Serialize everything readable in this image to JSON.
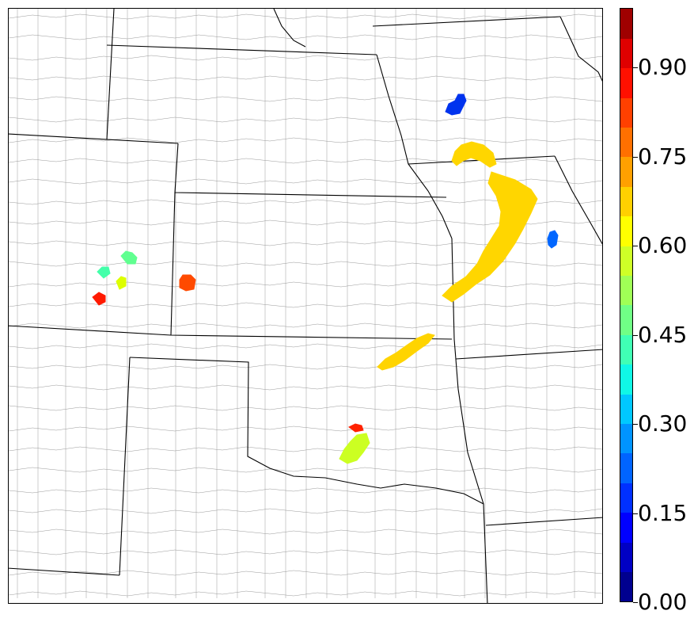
{
  "map": {
    "description_icon": "probability-field-map",
    "colormap": "jet"
  },
  "colorbar": {
    "min": 0.0,
    "max": 1.0,
    "step": 0.05,
    "tick_labels": [
      "0.00",
      "0.15",
      "0.30",
      "0.45",
      "0.60",
      "0.75",
      "0.90"
    ],
    "tick_values": [
      0.0,
      0.15,
      0.3,
      0.45,
      0.6,
      0.75,
      0.9
    ],
    "colors": [
      "#00008f",
      "#0000c4",
      "#0000ff",
      "#0030ff",
      "#0064ff",
      "#0094ff",
      "#00c8ff",
      "#10f8e6",
      "#40ffb5",
      "#70ff86",
      "#a0ff56",
      "#cfff27",
      "#ffff00",
      "#ffd000",
      "#ffa000",
      "#ff7000",
      "#ff4000",
      "#ff1000",
      "#df0000",
      "#9f0000"
    ]
  },
  "features": [
    {
      "name": "iowa-north-blob",
      "value": 0.12,
      "color": "#0033ee"
    },
    {
      "name": "iowa-line-north",
      "value": 0.68,
      "color": "#ffd600"
    },
    {
      "name": "missouri-kansas-line",
      "value": 0.68,
      "color": "#ffd600"
    },
    {
      "name": "missouri-east-blob",
      "value": 0.17,
      "color": "#0066ff"
    },
    {
      "name": "kansas-oklahoma-line",
      "value": 0.66,
      "color": "#ffd400"
    },
    {
      "name": "oklahoma-red-cell",
      "value": 0.93,
      "color": "#ff2200"
    },
    {
      "name": "oklahoma-green-cell",
      "value": 0.62,
      "color": "#ccff22"
    },
    {
      "name": "colorado-cell-1",
      "value": 0.47,
      "color": "#44ffaa"
    },
    {
      "name": "colorado-cell-2",
      "value": 0.5,
      "color": "#60ff90"
    },
    {
      "name": "colorado-cell-3",
      "value": 0.62,
      "color": "#ddff00"
    },
    {
      "name": "colorado-red-cell",
      "value": 0.93,
      "color": "#ff1a00"
    },
    {
      "name": "kansas-west-cell",
      "value": 0.85,
      "color": "#ff4a00"
    }
  ]
}
